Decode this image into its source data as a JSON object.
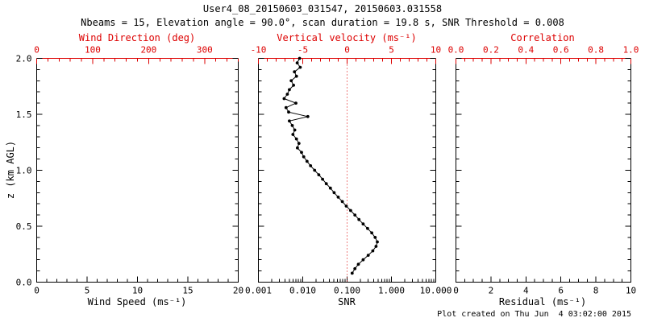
{
  "header": {
    "title": "User4_08_20150603_031547, 20150603.031558",
    "subtitle": "Nbeams = 15, Elevation angle = 90.0°, scan duration = 19.8 s, SNR Threshold = 0.008"
  },
  "footer": {
    "created": "Plot created on Thu Jun  4 03:02:00 2015"
  },
  "y_axis": {
    "label": "z (km AGL)"
  },
  "colors": {
    "axis": "#000000",
    "secondary_axis": "#dd0000",
    "data": "#000000"
  },
  "chart_data": [
    {
      "type": "scatter",
      "panel": "wind-speed",
      "xlabel": "Wind Speed (ms⁻¹)",
      "xlim": [
        0,
        20
      ],
      "xticks": [
        0,
        5,
        10,
        15,
        20
      ],
      "xminor": 1,
      "top_axis": {
        "label": "Wind Direction (deg)",
        "lim": [
          0,
          360
        ],
        "ticks": [
          0,
          100,
          200,
          300
        ],
        "minor": 20
      },
      "ylim": [
        0,
        2
      ],
      "yticks": [
        0,
        0.5,
        1,
        1.5,
        2
      ],
      "ytick_labels": [
        "0.0",
        "0.5",
        "1.0",
        "1.5",
        "2.0"
      ],
      "grid": false,
      "points": []
    },
    {
      "type": "line",
      "panel": "snr",
      "xlabel": "SNR",
      "xscale": "log",
      "xlim": [
        0.001,
        10
      ],
      "xticks": [
        0.001,
        0.01,
        0.1,
        1,
        10
      ],
      "xtick_labels": [
        "0.001",
        "0.010",
        "0.100",
        "1.000",
        "10.000"
      ],
      "top_axis": {
        "label": "Vertical velocity (ms⁻¹)",
        "lim": [
          -10,
          10
        ],
        "ticks": [
          -10,
          -5,
          0,
          5,
          10
        ],
        "minor": 1
      },
      "ylim": [
        0,
        2
      ],
      "yticks": [
        0,
        0.5,
        1,
        1.5,
        2
      ],
      "refline_top": 0,
      "grid": false,
      "points": [
        [
          0.0085,
          2.0
        ],
        [
          0.0075,
          1.96
        ],
        [
          0.0088,
          1.92
        ],
        [
          0.0065,
          1.88
        ],
        [
          0.0072,
          1.84
        ],
        [
          0.0055,
          1.8
        ],
        [
          0.0062,
          1.76
        ],
        [
          0.005,
          1.72
        ],
        [
          0.0045,
          1.68
        ],
        [
          0.0038,
          1.64
        ],
        [
          0.007,
          1.6
        ],
        [
          0.0042,
          1.56
        ],
        [
          0.0048,
          1.52
        ],
        [
          0.013,
          1.48
        ],
        [
          0.005,
          1.44
        ],
        [
          0.0058,
          1.4
        ],
        [
          0.0066,
          1.36
        ],
        [
          0.006,
          1.32
        ],
        [
          0.0072,
          1.28
        ],
        [
          0.0082,
          1.24
        ],
        [
          0.0076,
          1.2
        ],
        [
          0.0094,
          1.16
        ],
        [
          0.0105,
          1.12
        ],
        [
          0.0125,
          1.08
        ],
        [
          0.015,
          1.04
        ],
        [
          0.0185,
          1.0
        ],
        [
          0.023,
          0.96
        ],
        [
          0.028,
          0.92
        ],
        [
          0.034,
          0.88
        ],
        [
          0.042,
          0.84
        ],
        [
          0.051,
          0.8
        ],
        [
          0.063,
          0.76
        ],
        [
          0.078,
          0.72
        ],
        [
          0.096,
          0.68
        ],
        [
          0.12,
          0.64
        ],
        [
          0.15,
          0.6
        ],
        [
          0.185,
          0.56
        ],
        [
          0.23,
          0.52
        ],
        [
          0.29,
          0.48
        ],
        [
          0.36,
          0.44
        ],
        [
          0.43,
          0.4
        ],
        [
          0.48,
          0.36
        ],
        [
          0.45,
          0.32
        ],
        [
          0.38,
          0.28
        ],
        [
          0.3,
          0.24
        ],
        [
          0.23,
          0.2
        ],
        [
          0.18,
          0.16
        ],
        [
          0.15,
          0.12
        ],
        [
          0.13,
          0.08
        ]
      ]
    },
    {
      "type": "scatter",
      "panel": "residual",
      "xlabel": "Residual (ms⁻¹)",
      "xlim": [
        0,
        10
      ],
      "xticks": [
        0,
        2,
        4,
        6,
        8,
        10
      ],
      "xminor": 0.5,
      "top_axis": {
        "label": "Correlation",
        "lim": [
          0,
          1
        ],
        "ticks": [
          0,
          0.2,
          0.4,
          0.6,
          0.8,
          1
        ],
        "tick_labels": [
          "0.0",
          "0.2",
          "0.4",
          "0.6",
          "0.8",
          "1.0"
        ],
        "minor": 0.05
      },
      "ylim": [
        0,
        2
      ],
      "yticks": [
        0,
        0.5,
        1,
        1.5,
        2
      ],
      "grid": false,
      "points": []
    }
  ]
}
